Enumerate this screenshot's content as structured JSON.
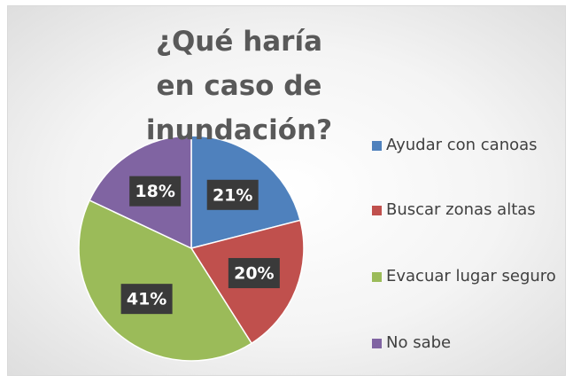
{
  "chart_data": {
    "type": "pie",
    "title": "¿Qué haría en caso de inundación?",
    "categories": [
      "Ayudar con canoas",
      "Buscar zonas altas",
      "Evacuar lugar seguro",
      "No sabe"
    ],
    "values": [
      21,
      20,
      41,
      18
    ],
    "value_labels": [
      "21%",
      "20%",
      "41%",
      "18%"
    ],
    "colors": [
      "#4f81bd",
      "#c0504d",
      "#9bbb59",
      "#8064a2"
    ],
    "legend": "right"
  }
}
